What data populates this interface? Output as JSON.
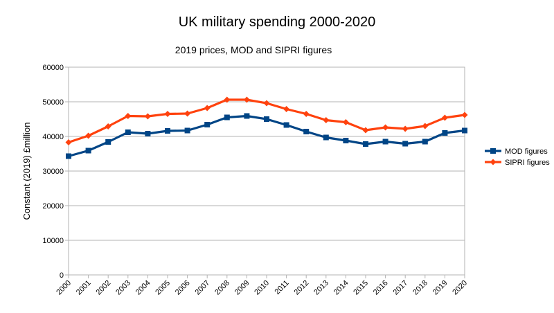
{
  "chart_data": {
    "type": "line",
    "title": "UK military spending 2000-2020",
    "subtitle": "2019 prices, MOD and SIPRI figures",
    "xlabel": "",
    "ylabel": "Constant (2019) £million",
    "ylim": [
      0,
      60000
    ],
    "yticks": [
      0,
      10000,
      20000,
      30000,
      40000,
      50000,
      60000
    ],
    "categories": [
      "2000",
      "2001",
      "2002",
      "2003",
      "2004",
      "2005",
      "2006",
      "2007",
      "2008",
      "2009",
      "2010",
      "2011",
      "2012",
      "2013",
      "2014",
      "2015",
      "2016",
      "2017",
      "2018",
      "2019",
      "2020"
    ],
    "grid": "horizontal",
    "legend_position": "right",
    "series": [
      {
        "name": "MOD figures",
        "color": "#004586",
        "marker": "square",
        "values": [
          34300,
          35900,
          38400,
          41200,
          40800,
          41600,
          41700,
          43400,
          45500,
          45900,
          45000,
          43300,
          41400,
          39700,
          38800,
          37800,
          38500,
          37900,
          38500,
          41000,
          41700
        ]
      },
      {
        "name": "SIPRI figures",
        "color": "#ff420e",
        "marker": "diamond",
        "values": [
          38300,
          40200,
          42900,
          45900,
          45800,
          46500,
          46600,
          48200,
          50600,
          50600,
          49600,
          47900,
          46500,
          44700,
          44100,
          41800,
          42600,
          42200,
          43000,
          45400,
          46200
        ]
      }
    ]
  }
}
